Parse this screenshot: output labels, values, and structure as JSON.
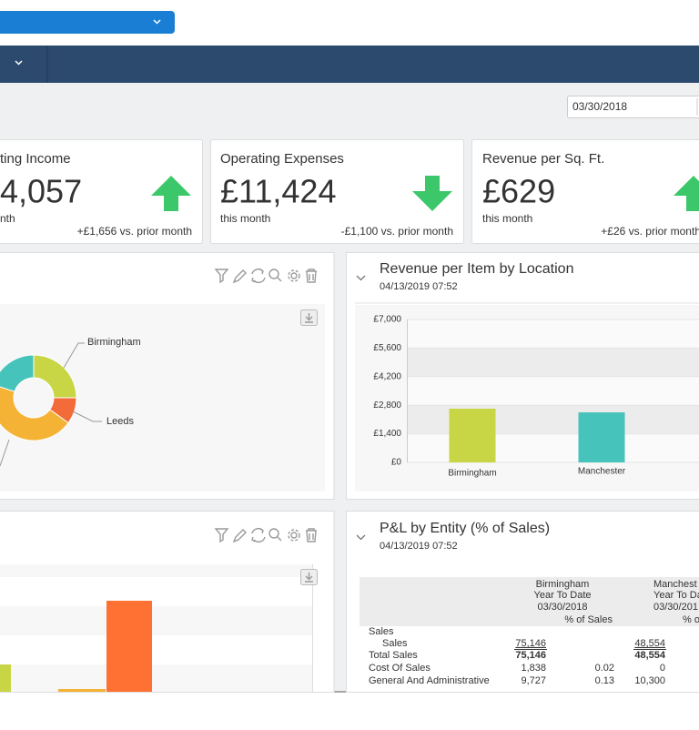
{
  "date_input": "03/30/2018",
  "kpis": [
    {
      "title": "ting Income",
      "value": "4,057",
      "caption": "nth",
      "change": "+£1,656 vs. prior month",
      "direction": "up"
    },
    {
      "title": "Operating Expenses",
      "value": "£11,424",
      "caption": "this month",
      "change": "-£1,100 vs. prior month",
      "direction": "down"
    },
    {
      "title": "Revenue per Sq. Ft.",
      "value": "£629",
      "caption": "this month",
      "change": "+£26 vs. prior month",
      "direction": "up"
    }
  ],
  "revenue_pie": {
    "type": "donut",
    "labels": [
      "Birmingham",
      "Leeds",
      null,
      null
    ],
    "values": [
      25,
      10,
      45,
      20
    ],
    "colors": [
      "#c8d645",
      "#f26b38",
      "#f5b335",
      "#46c4bb"
    ]
  },
  "revenue_by_location": {
    "type": "bar",
    "title": "Revenue per Item by Location",
    "subtitle": "04/13/2019 07:52",
    "categories": [
      "Birmingham",
      "Manchester"
    ],
    "values": [
      2630,
      2450
    ],
    "colors": [
      "#c8d645",
      "#46c4bb"
    ],
    "ylim": [
      0,
      7000
    ],
    "yticks": [
      {
        "value": 0,
        "label": "£0"
      },
      {
        "value": 1400,
        "label": "£1,400"
      },
      {
        "value": 2800,
        "label": "£2,800"
      },
      {
        "value": 4200,
        "label": "£4,200"
      },
      {
        "value": 5600,
        "label": "£5,600"
      },
      {
        "value": 7000,
        "label": "£7,000"
      }
    ]
  },
  "pnl": {
    "title": "P&L by Entity (% of Sales)",
    "subtitle": "04/13/2019 07:52",
    "entity1": [
      "Birmingham",
      "Year To Date",
      "03/30/2018",
      "% of Sales"
    ],
    "entity2": [
      "Manchest",
      "Year To Da",
      "03/30/201",
      "% o"
    ],
    "rows": [
      {
        "label": "Sales",
        "kind": "group"
      },
      {
        "label": "Sales",
        "kind": "detail",
        "ytd1": "75,146",
        "ytd2": "48,554"
      },
      {
        "label": "Total Sales",
        "kind": "total",
        "ytd1": "75,146",
        "ytd2": "48,554"
      },
      {
        "label": "Cost Of Sales",
        "kind": "account",
        "ytd1": "1,838",
        "pct1": "0.02",
        "ytd2": "0"
      },
      {
        "label": "General And Administrative",
        "kind": "account",
        "ytd1": "9,727",
        "pct1": "0.13",
        "ytd2": "10,300"
      }
    ]
  }
}
